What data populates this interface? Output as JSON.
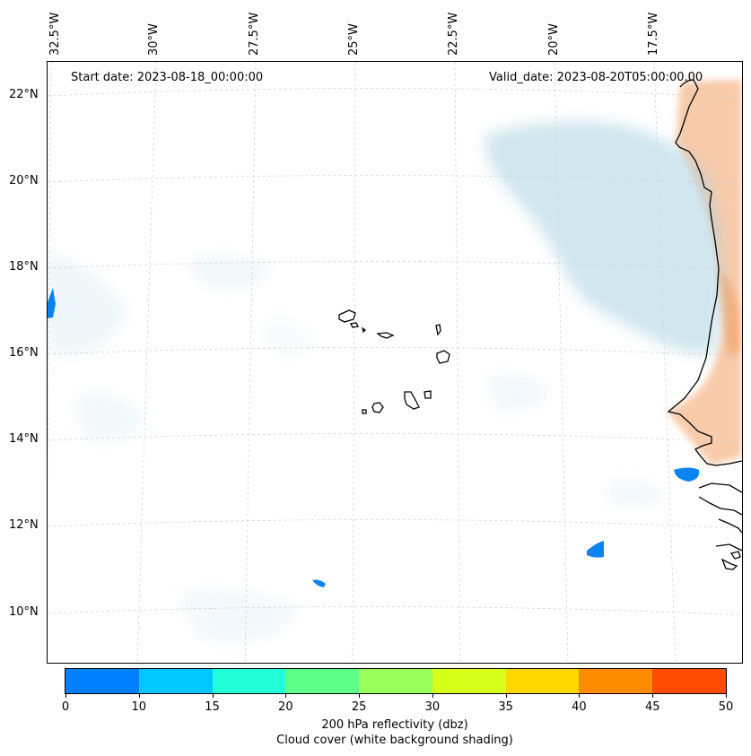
{
  "map": {
    "lon_labels": [
      "32.5°W",
      "30°W",
      "27.5°W",
      "25°W",
      "22.5°W",
      "20°W",
      "17.5°W"
    ],
    "lat_labels": [
      "22°N",
      "20°N",
      "18°N",
      "16°N",
      "14°N",
      "12°N",
      "10°N"
    ],
    "start_date": "Start date: 2023-08-18_00:00:00",
    "valid_date": "Valid_date: 2023-08-20T05:00:00.00"
  },
  "colorbar": {
    "ticks": [
      "0",
      "10",
      "15",
      "20",
      "25",
      "30",
      "35",
      "40",
      "45",
      "50"
    ],
    "colors": [
      "#0080ff",
      "#00c8ff",
      "#20ffd8",
      "#5cff8a",
      "#9aff5a",
      "#d8ff1a",
      "#ffd800",
      "#ff8c00",
      "#ff4a00"
    ],
    "label_line1": "200 hPa reflectivity (dbz)",
    "label_line2": "Cloud cover (white background shading)"
  },
  "colors": {
    "cloud_shading": "#a9d3e2",
    "land_shading": "#f2a064",
    "reflectivity_blobs": "#0a84f0",
    "coastline": "#000000",
    "gridlines": "#cfcfcf"
  }
}
